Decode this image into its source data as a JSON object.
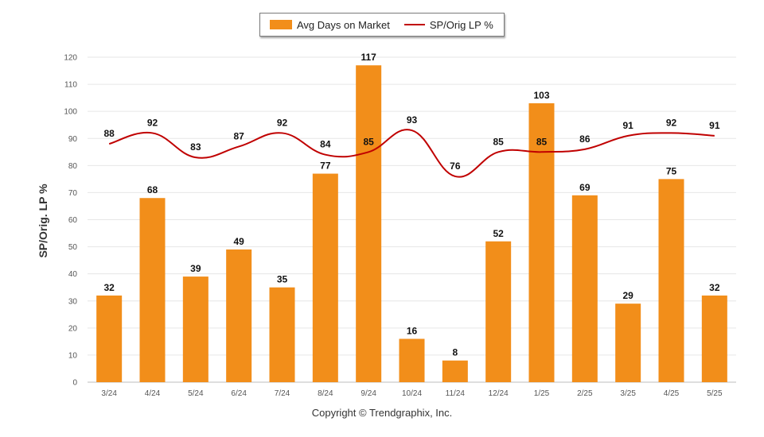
{
  "legend": {
    "bar_label": "Avg Days on Market",
    "line_label": "SP/Orig LP %"
  },
  "copyright": "Copyright © Trendgraphix, Inc.",
  "colors": {
    "bar": "#f28e1a",
    "line": "#c00000",
    "grid": "#e6e6e6",
    "axis_text": "#555555",
    "label_text": "#111111"
  },
  "chart_data": {
    "type": "bar",
    "categories": [
      "3/24",
      "4/24",
      "5/24",
      "6/24",
      "7/24",
      "8/24",
      "9/24",
      "10/24",
      "11/24",
      "12/24",
      "1/25",
      "2/25",
      "3/25",
      "4/25",
      "5/25"
    ],
    "ylabel": "SP/Orig. LP %",
    "ylim": [
      0,
      120
    ],
    "yticks": [
      0,
      10,
      20,
      30,
      40,
      50,
      60,
      70,
      80,
      90,
      100,
      110,
      120
    ],
    "grid": true,
    "legend_position": "top-center",
    "series": [
      {
        "name": "Avg Days on Market",
        "type": "bar",
        "values": [
          32,
          68,
          39,
          49,
          35,
          77,
          117,
          16,
          8,
          52,
          103,
          69,
          29,
          75,
          32
        ]
      },
      {
        "name": "SP/Orig LP %",
        "type": "line",
        "values": [
          88,
          92,
          83,
          87,
          92,
          84,
          85,
          93,
          76,
          85,
          85,
          86,
          91,
          92,
          91
        ]
      }
    ]
  }
}
